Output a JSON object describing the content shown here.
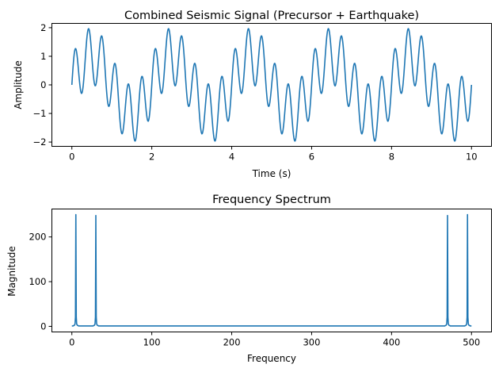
{
  "chart_data": [
    {
      "type": "line",
      "title": "Combined Seismic Signal (Precursor + Earthquake)",
      "xlabel": "Time (s)",
      "ylabel": "Amplitude",
      "xlim": [
        -0.5,
        10.5
      ],
      "ylim": [
        -2.15,
        2.15
      ],
      "xticks": [
        0,
        2,
        4,
        6,
        8,
        10
      ],
      "yticks": [
        -2,
        -1,
        0,
        1,
        2
      ],
      "grid": false,
      "color": "#1f77b4",
      "series": [
        {
          "function": "sin(2*pi*0.5*t) + sin(2*pi*3*t)",
          "t_range": [
            0,
            10
          ],
          "samples": 1000
        }
      ]
    },
    {
      "type": "line",
      "title": "Frequency Spectrum",
      "xlabel": "Frequency",
      "ylabel": "Magnitude",
      "xlim": [
        -25,
        525
      ],
      "ylim": [
        -12.5,
        262.5
      ],
      "xticks": [
        0,
        100,
        200,
        300,
        400,
        500
      ],
      "yticks": [
        0,
        100,
        200
      ],
      "grid": false,
      "color": "#1f77b4",
      "series": [
        {
          "function": "abs(fft(signal))",
          "peaks": [
            {
              "frequency": 5,
              "magnitude": 250
            },
            {
              "frequency": 30,
              "magnitude": 248
            },
            {
              "frequency": 470,
              "magnitude": 248
            },
            {
              "frequency": 495,
              "magnitude": 250
            }
          ],
          "baseline": 1
        }
      ]
    }
  ]
}
